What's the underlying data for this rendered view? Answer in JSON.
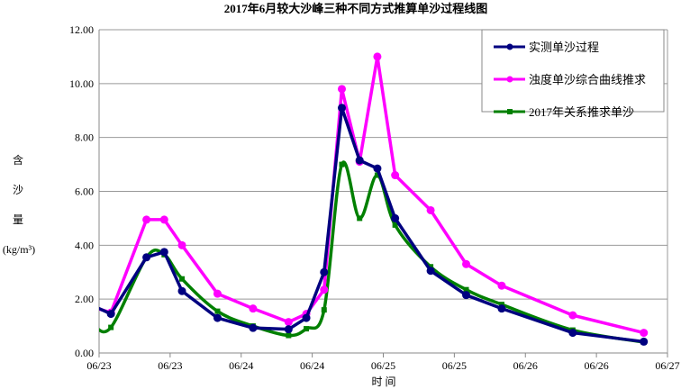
{
  "chart_data": {
    "type": "line",
    "title": "2017年6月较大沙峰三种不同方式推算单沙过程线图",
    "xlabel": "时 间",
    "ylabel": [
      "含",
      "沙",
      "量",
      "(kg/m³)"
    ],
    "x_unit": "hours since 06/23 00:00",
    "xlim": [
      0,
      96
    ],
    "ylim": [
      0,
      12
    ],
    "x_ticks": [
      0,
      12,
      24,
      36,
      48,
      60,
      72,
      84,
      96
    ],
    "x_tick_labels": [
      "06/23",
      "06/23",
      "06/24",
      "06/24",
      "06/25",
      "06/25",
      "06/26",
      "06/26",
      "06/27"
    ],
    "y_ticks": [
      0,
      2,
      4,
      6,
      8,
      10,
      12
    ],
    "y_tick_labels": [
      "0.00",
      "2.00",
      "4.00",
      "6.00",
      "8.00",
      "10.00",
      "12.00"
    ],
    "grid": "horizontal",
    "legend_position": "top-right",
    "series": [
      {
        "name": "实测单沙过程",
        "color": "#000080",
        "marker": "circle",
        "smooth": false,
        "x": [
          -1,
          2,
          8,
          11,
          14,
          20,
          26,
          32,
          35,
          38,
          41,
          44,
          47,
          50,
          56,
          62,
          68,
          80,
          92
        ],
        "values": [
          1.75,
          1.45,
          3.55,
          3.75,
          2.3,
          1.3,
          0.93,
          0.88,
          1.3,
          3.0,
          9.1,
          7.15,
          6.85,
          5.0,
          3.05,
          2.15,
          1.65,
          0.75,
          0.42
        ]
      },
      {
        "name": "浊度单沙综合曲线推求",
        "color": "#FF00FF",
        "marker": "circle",
        "smooth": false,
        "x": [
          -1,
          2,
          8,
          11,
          14,
          20,
          26,
          32,
          35,
          38,
          41,
          44,
          47,
          50,
          56,
          62,
          68,
          80,
          92
        ],
        "values": [
          1.7,
          1.5,
          4.95,
          4.95,
          4.0,
          2.2,
          1.65,
          1.15,
          1.45,
          2.35,
          9.8,
          7.1,
          11.0,
          6.6,
          5.3,
          3.3,
          2.5,
          1.4,
          0.75
        ]
      },
      {
        "name": "2017年关系推求单沙",
        "color": "#008000",
        "marker": "square",
        "smooth": true,
        "x": [
          -1,
          2,
          8,
          11,
          14,
          20,
          26,
          32,
          35,
          38,
          41,
          44,
          47,
          50,
          56,
          62,
          68,
          80,
          92
        ],
        "values": [
          1.05,
          0.95,
          3.55,
          3.65,
          2.75,
          1.55,
          1.0,
          0.65,
          0.9,
          1.6,
          7.0,
          5.0,
          6.6,
          4.75,
          3.2,
          2.35,
          1.8,
          0.85,
          0.4
        ]
      }
    ]
  }
}
